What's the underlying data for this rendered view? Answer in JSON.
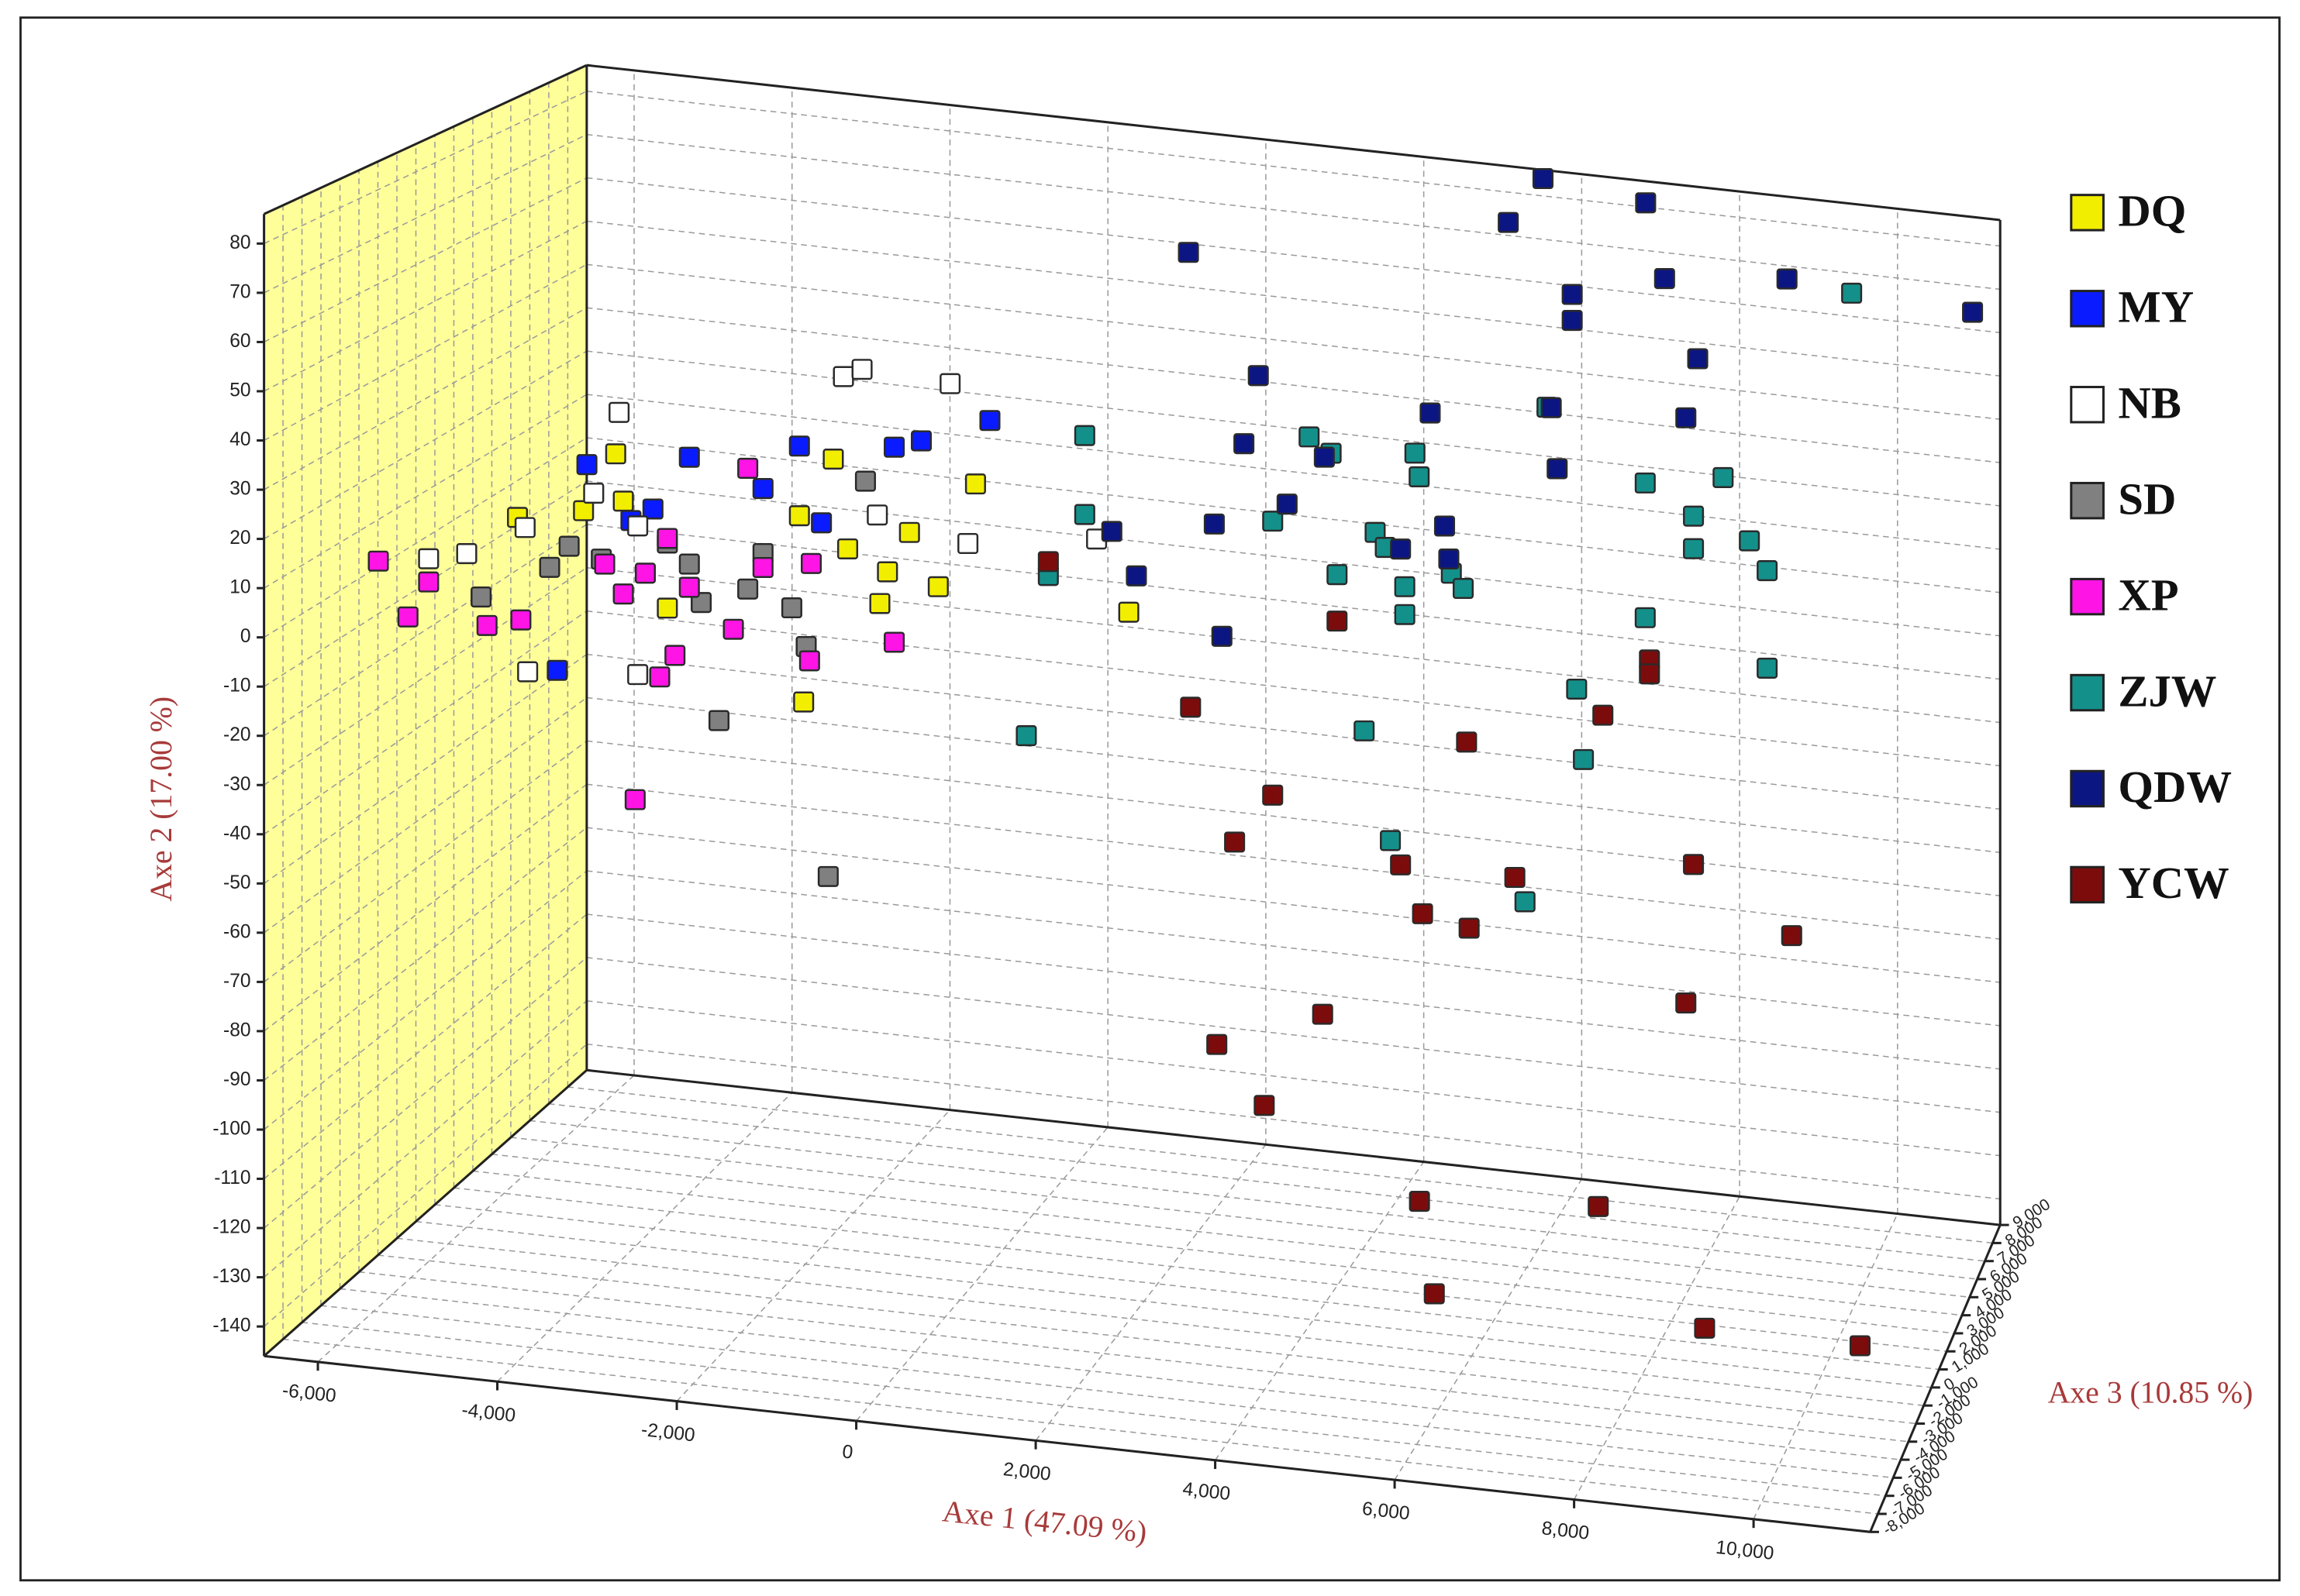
{
  "chart_data": {
    "type": "scatter3d",
    "xlabel": "Axe 1 (47.09 %)",
    "ylabel": "Axe 2 (17.00 %)",
    "zlabel": "Axe 3 (10.85 %)",
    "xlim": [
      -6600,
      11300
    ],
    "ylim": [
      -146,
      86
    ],
    "zlim": [
      -8000,
      9000
    ],
    "xticks": [
      {
        "value": -6000,
        "label": "-6,000"
      },
      {
        "value": -4000,
        "label": "-4,000"
      },
      {
        "value": -2000,
        "label": "-2,000"
      },
      0,
      {
        "value": 2000,
        "label": "2,000"
      },
      {
        "value": 4000,
        "label": "4,000"
      },
      {
        "value": 6000,
        "label": "6,000"
      },
      {
        "value": 8000,
        "label": "8,000"
      },
      {
        "value": 10000,
        "label": "10,000"
      }
    ],
    "yticks": [
      80,
      70,
      60,
      50,
      40,
      30,
      20,
      10,
      0,
      -10,
      -20,
      -30,
      -40,
      -50,
      -60,
      -70,
      -80,
      -90,
      -100,
      -110,
      -120,
      -130,
      -140
    ],
    "zticks": [
      {
        "value": 9000,
        "label": "9,000"
      },
      {
        "value": 8000,
        "label": "8,000"
      },
      {
        "value": 7000,
        "label": "7,000"
      },
      {
        "value": 6000,
        "label": "6,000"
      },
      {
        "value": 5000,
        "label": "5,000"
      },
      {
        "value": 4000,
        "label": "4,000"
      },
      {
        "value": 3000,
        "label": "3,000"
      },
      {
        "value": 2000,
        "label": "2,000"
      },
      {
        "value": 1000,
        "label": "1,000"
      },
      0,
      {
        "value": -1000,
        "label": "-1,000"
      },
      {
        "value": -2000,
        "label": "-2,000"
      },
      {
        "value": -3000,
        "label": "-3,000"
      },
      {
        "value": -4000,
        "label": "-4,000"
      },
      {
        "value": -5000,
        "label": "-5,000"
      },
      {
        "value": -6000,
        "label": "-6,000"
      },
      {
        "value": -7000,
        "label": "-7,000"
      },
      {
        "value": -8000,
        "label": "-8,000"
      }
    ],
    "grid": true,
    "legend": "right",
    "series": [
      {
        "name": "DQ",
        "color": "#f2ee00",
        "x": [
          -5400,
          -4240,
          -4620,
          -3630,
          -2020,
          -1670,
          -2070,
          -1500,
          -1030,
          -770,
          -1120,
          -430,
          10,
          1820,
          -4150
        ],
        "y": [
          8,
          24,
          11,
          -8,
          -25,
          28,
          15,
          9,
          5,
          14,
          -2,
          3,
          26,
          2,
          14
        ],
        "z": [
          0,
          0,
          0,
          0,
          0,
          0,
          0,
          0,
          0,
          0,
          0,
          0,
          0,
          0,
          0
        ]
      },
      {
        "name": "MY",
        "color": "#0a1cff",
        "x": [
          -4580,
          -3800,
          -3370,
          -2500,
          -2070,
          -1810,
          -950,
          -630,
          180,
          -4930,
          -4060
        ],
        "y": [
          21,
          13,
          25,
          20,
          30,
          14,
          32,
          34,
          40,
          -24,
          10
        ],
        "z": [
          0,
          0,
          0,
          0,
          0,
          0,
          0,
          0,
          0,
          0,
          0
        ]
      },
      {
        "name": "NB",
        "color": "#ffffff",
        "x": [
          -6450,
          -6000,
          -5310,
          -4200,
          -4500,
          -3980,
          -1550,
          -1330,
          -290,
          -1150,
          -80,
          1440,
          -3980,
          -5280
        ],
        "y": [
          -3,
          -1,
          6,
          33,
          15,
          9,
          46,
          48,
          47,
          17,
          13,
          17,
          -23,
          -25
        ],
        "z": [
          0,
          0,
          0,
          0,
          0,
          0,
          0,
          0,
          0,
          0,
          0,
          0,
          0,
          0
        ]
      },
      {
        "name": "SD",
        "color": "#808080",
        "x": [
          -5830,
          -5020,
          -4790,
          -4410,
          -3630,
          -3230,
          -3020,
          -2680,
          -2500,
          -2160,
          -1990,
          -1730,
          -1290,
          -3370
        ],
        "y": [
          -10,
          -2,
          3,
          1,
          6,
          -6,
          -31,
          -2,
          6,
          -5,
          -13,
          -62,
          24,
          2
        ],
        "z": [
          0,
          0,
          0,
          0,
          0,
          0,
          0,
          0,
          0,
          0,
          0,
          0,
          0,
          0
        ]
      },
      {
        "name": "XP",
        "color": "#ff14e6",
        "x": [
          -6160,
          -5820,
          -6450,
          -5760,
          -5360,
          -4370,
          -4150,
          -3890,
          -3630,
          -3370,
          -3540,
          -3720,
          -4010,
          -2680,
          -2500,
          -1930,
          -1950,
          -950,
          -2850
        ],
        "y": [
          7,
          -4,
          -8,
          -16,
          -14,
          0,
          -6,
          -1,
          7,
          -3,
          -18,
          -23,
          -50,
          24,
          3,
          5,
          -16,
          -10,
          -11
        ],
        "z": [
          -4000,
          -4000,
          0,
          0,
          0,
          0,
          0,
          0,
          0,
          0,
          0,
          0,
          0,
          0,
          0,
          0,
          0,
          0,
          0
        ]
      },
      {
        "name": "ZJW",
        "color": "#14908b",
        "x": [
          610,
          1300,
          1300,
          870,
          3520,
          3950,
          4210,
          4280,
          4730,
          4850,
          4600,
          5080,
          5080,
          5200,
          5250,
          5630,
          5770,
          4910,
          6500,
          7110,
          7190,
          6760,
          7920,
          7920,
          8490,
          8490,
          8840,
          9150,
          9360,
          9360,
          9530
        ],
        "y": [
          -27,
          39,
          22,
          8,
          25,
          44,
          41,
          15,
          25,
          22,
          -18,
          14,
          8,
          43,
          38,
          18,
          15,
          -41,
          -51,
          -4,
          -19,
          56,
          42,
          13,
          36,
          29,
          45,
          32,
          26,
          5,
          68
        ],
        "z": [
          0,
          0,
          0,
          0,
          0,
          0,
          0,
          0,
          0,
          0,
          0,
          0,
          0,
          0,
          0,
          0,
          0,
          0,
          0,
          0,
          0,
          0,
          0,
          0,
          0,
          0,
          0,
          0,
          0,
          0,
          8000
        ]
      },
      {
        "name": "QDW",
        "color": "#0c1682",
        "x": [
          5510,
          6810,
          5070,
          8600,
          10950,
          1020,
          7050,
          5880,
          5880,
          3350,
          5380,
          3180,
          3690,
          2830,
          1910,
          1620,
          4130,
          2920,
          5550,
          5600,
          8540,
          8400,
          6880,
          6810,
          5030
        ],
        "y": [
          84,
          81,
          73,
          67,
          64,
          58,
          64,
          58,
          52,
          56,
          52,
          41,
          29,
          23,
          10,
          19,
          40,
          -1,
          28,
          21,
          70,
          57,
          43,
          56,
          22
        ],
        "z": [
          9000,
          9000,
          9000,
          9000,
          9000,
          9000,
          9000,
          9000,
          9000,
          0,
          0,
          0,
          0,
          0,
          0,
          0,
          0,
          0,
          0,
          0,
          0,
          0,
          0,
          0,
          0
        ]
      },
      {
        "name": "YCW",
        "color": "#7c0c0c",
        "x": [
          870,
          2550,
          4280,
          3520,
          3070,
          5810,
          7420,
          7970,
          7970,
          5030,
          5290,
          5840,
          6380,
          8490,
          9650,
          8400,
          4110,
          2860,
          3420,
          5780,
          7830,
          5950,
          9050,
          11100
        ],
        "y": [
          11,
          -17,
          5,
          -34,
          -45,
          -18,
          -9,
          4,
          1,
          -46,
          -56,
          -58,
          -46,
          -39,
          -52,
          -69,
          -80,
          -89,
          -101,
          -103,
          -100,
          -122,
          -123,
          -112
        ],
        "z": [
          0,
          0,
          0,
          0,
          0,
          0,
          0,
          0,
          0,
          0,
          0,
          0,
          0,
          0,
          0,
          0,
          0,
          0,
          0,
          -4000,
          -4000,
          -4000,
          -4000,
          -7000
        ]
      }
    ]
  }
}
